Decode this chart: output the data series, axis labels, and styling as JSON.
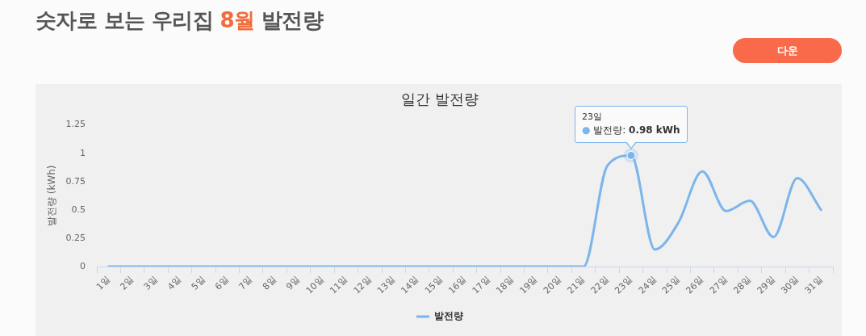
{
  "chart_data": {
    "type": "line",
    "title": "숫자로 보는 우리집 8월 발전량",
    "subtitle": "일간 발전량",
    "ylabel": "발전량 (kWh)",
    "categories": [
      "1일",
      "2일",
      "3일",
      "4일",
      "5일",
      "6일",
      "7일",
      "8일",
      "9일",
      "10일",
      "11일",
      "12일",
      "13일",
      "14일",
      "15일",
      "16일",
      "17일",
      "18일",
      "19일",
      "20일",
      "21일",
      "22일",
      "23일",
      "24일",
      "25일",
      "26일",
      "27일",
      "28일",
      "29일",
      "30일",
      "31일"
    ],
    "series": [
      {
        "name": "발전량",
        "color": "#7cb5ec",
        "values": [
          0,
          0,
          0,
          0,
          0,
          0,
          0,
          0,
          0,
          0,
          0,
          0,
          0,
          0,
          0,
          0,
          0,
          0,
          0,
          0,
          0,
          0.89,
          0.98,
          0.15,
          0.39,
          0.84,
          0.49,
          0.58,
          0.26,
          0.78,
          0.5
        ]
      }
    ],
    "ylim": [
      0,
      1.25
    ],
    "yticks": [
      0,
      0.25,
      0.5,
      0.75,
      1,
      1.25
    ],
    "grid": false,
    "legend": "bottom",
    "marker": "none",
    "line_style": "solid",
    "annotations": [
      {
        "text": "23일\n● 발전량: 0.98 kWh",
        "x": "23일",
        "y": 0.98
      },
      "다운"
    ]
  }
}
